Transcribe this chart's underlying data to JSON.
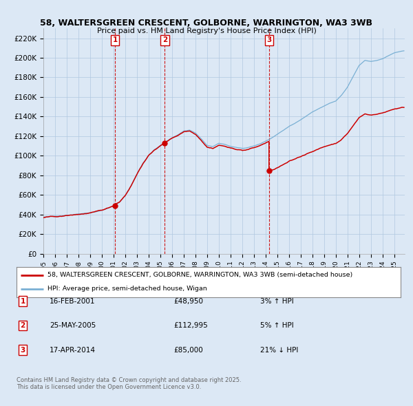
{
  "title_line1": "58, WALTERSGREEN CRESCENT, GOLBORNE, WARRINGTON, WA3 3WB",
  "title_line2": "Price paid vs. HM Land Registry's House Price Index (HPI)",
  "ylim": [
    0,
    230000
  ],
  "yticks": [
    0,
    20000,
    40000,
    60000,
    80000,
    100000,
    120000,
    140000,
    160000,
    180000,
    200000,
    220000
  ],
  "ytick_labels": [
    "£0",
    "£20K",
    "£40K",
    "£60K",
    "£80K",
    "£100K",
    "£120K",
    "£140K",
    "£160K",
    "£180K",
    "£200K",
    "£220K"
  ],
  "bg_color": "#dce8f5",
  "plot_bg_color": "#dce8f5",
  "grid_color": "#b0c8e0",
  "sale_dates_t": [
    2001.125,
    2005.375,
    2014.292
  ],
  "sale_prices": [
    48950,
    112995,
    85000
  ],
  "sale_labels": [
    "1",
    "2",
    "3"
  ],
  "sale_info": [
    {
      "label": "1",
      "date": "16-FEB-2001",
      "price": "£48,950",
      "pct": "3%",
      "dir": "↑"
    },
    {
      "label": "2",
      "date": "25-MAY-2005",
      "price": "£112,995",
      "pct": "5%",
      "dir": "↑"
    },
    {
      "label": "3",
      "date": "17-APR-2014",
      "price": "£85,000",
      "pct": "21%",
      "dir": "↓"
    }
  ],
  "property_line_color": "#cc0000",
  "hpi_line_color": "#7ab0d4",
  "vline_color": "#cc0000",
  "legend_property": "58, WALTERSGREEN CRESCENT, GOLBORNE, WARRINGTON, WA3 3WB (semi-detached house)",
  "legend_hpi": "HPI: Average price, semi-detached house, Wigan",
  "footnote": "Contains HM Land Registry data © Crown copyright and database right 2025.\nThis data is licensed under the Open Government Licence v3.0.",
  "xstart": 1995.0,
  "xend": 2025.9
}
